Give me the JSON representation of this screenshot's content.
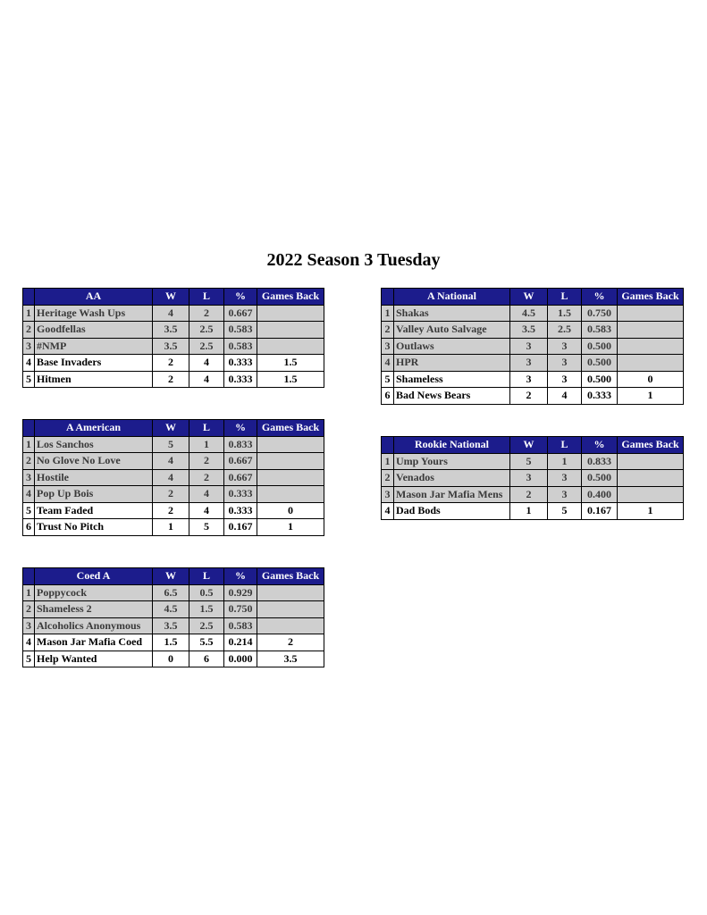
{
  "title": "2022 Season 3 Tuesday",
  "columns": {
    "w": "W",
    "l": "L",
    "pct": "%",
    "gb": "Games Back"
  },
  "colors": {
    "header_bg": "#1c1c8c",
    "header_text": "#ffffff",
    "shaded_row": "#cfcfcf"
  },
  "tables": [
    {
      "division": "AA",
      "rows": [
        {
          "rank": "1",
          "team": "Heritage Wash Ups",
          "w": "4",
          "l": "2",
          "pct": "0.667",
          "gb": "",
          "shaded": true
        },
        {
          "rank": "2",
          "team": "Goodfellas",
          "w": "3.5",
          "l": "2.5",
          "pct": "0.583",
          "gb": "",
          "shaded": true
        },
        {
          "rank": "3",
          "team": "#NMP",
          "w": "3.5",
          "l": "2.5",
          "pct": "0.583",
          "gb": "",
          "shaded": true
        },
        {
          "rank": "4",
          "team": "Base Invaders",
          "w": "2",
          "l": "4",
          "pct": "0.333",
          "gb": "1.5",
          "shaded": false
        },
        {
          "rank": "5",
          "team": "Hitmen",
          "w": "2",
          "l": "4",
          "pct": "0.333",
          "gb": "1.5",
          "shaded": false
        }
      ]
    },
    {
      "division": "A National",
      "rows": [
        {
          "rank": "1",
          "team": "Shakas",
          "w": "4.5",
          "l": "1.5",
          "pct": "0.750",
          "gb": "",
          "shaded": true
        },
        {
          "rank": "2",
          "team": "Valley Auto Salvage",
          "w": "3.5",
          "l": "2.5",
          "pct": "0.583",
          "gb": "",
          "shaded": true
        },
        {
          "rank": "3",
          "team": "Outlaws",
          "w": "3",
          "l": "3",
          "pct": "0.500",
          "gb": "",
          "shaded": true
        },
        {
          "rank": "4",
          "team": "HPR",
          "w": "3",
          "l": "3",
          "pct": "0.500",
          "gb": "",
          "shaded": true
        },
        {
          "rank": "5",
          "team": "Shameless",
          "w": "3",
          "l": "3",
          "pct": "0.500",
          "gb": "0",
          "shaded": false
        },
        {
          "rank": "6",
          "team": "Bad News Bears",
          "w": "2",
          "l": "4",
          "pct": "0.333",
          "gb": "1",
          "shaded": false
        }
      ]
    },
    {
      "division": "A American",
      "rows": [
        {
          "rank": "1",
          "team": "Los Sanchos",
          "w": "5",
          "l": "1",
          "pct": "0.833",
          "gb": "",
          "shaded": true
        },
        {
          "rank": "2",
          "team": "No Glove No Love",
          "w": "4",
          "l": "2",
          "pct": "0.667",
          "gb": "",
          "shaded": true
        },
        {
          "rank": "3",
          "team": "Hostile",
          "w": "4",
          "l": "2",
          "pct": "0.667",
          "gb": "",
          "shaded": true
        },
        {
          "rank": "4",
          "team": "Pop Up Bois",
          "w": "2",
          "l": "4",
          "pct": "0.333",
          "gb": "",
          "shaded": true
        },
        {
          "rank": "5",
          "team": "Team Faded",
          "w": "2",
          "l": "4",
          "pct": "0.333",
          "gb": "0",
          "shaded": false
        },
        {
          "rank": "6",
          "team": "Trust No Pitch",
          "w": "1",
          "l": "5",
          "pct": "0.167",
          "gb": "1",
          "shaded": false
        }
      ]
    },
    {
      "division": "Rookie National",
      "rows": [
        {
          "rank": "1",
          "team": "Ump Yours",
          "w": "5",
          "l": "1",
          "pct": "0.833",
          "gb": "",
          "shaded": true
        },
        {
          "rank": "2",
          "team": "Venados",
          "w": "3",
          "l": "3",
          "pct": "0.500",
          "gb": "",
          "shaded": true
        },
        {
          "rank": "3",
          "team": "Mason Jar Mafia Mens",
          "w": "2",
          "l": "3",
          "pct": "0.400",
          "gb": "",
          "shaded": true
        },
        {
          "rank": "4",
          "team": "Dad Bods",
          "w": "1",
          "l": "5",
          "pct": "0.167",
          "gb": "1",
          "shaded": false
        }
      ]
    },
    {
      "division": "Coed A",
      "rows": [
        {
          "rank": "1",
          "team": "Poppycock",
          "w": "6.5",
          "l": "0.5",
          "pct": "0.929",
          "gb": "",
          "shaded": true
        },
        {
          "rank": "2",
          "team": "Shameless 2",
          "w": "4.5",
          "l": "1.5",
          "pct": "0.750",
          "gb": "",
          "shaded": true
        },
        {
          "rank": "3",
          "team": "Alcoholics Anonymous",
          "w": "3.5",
          "l": "2.5",
          "pct": "0.583",
          "gb": "",
          "shaded": true
        },
        {
          "rank": "4",
          "team": "Mason Jar Mafia Coed",
          "w": "1.5",
          "l": "5.5",
          "pct": "0.214",
          "gb": "2",
          "shaded": false
        },
        {
          "rank": "5",
          "team": "Help Wanted",
          "w": "0",
          "l": "6",
          "pct": "0.000",
          "gb": "3.5",
          "shaded": false
        }
      ]
    }
  ]
}
